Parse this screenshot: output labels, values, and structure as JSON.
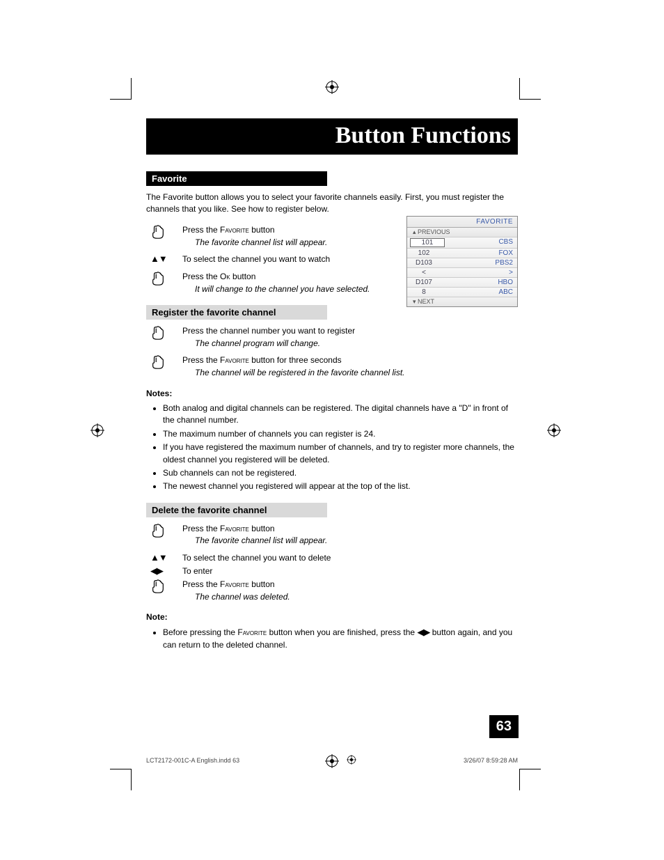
{
  "title": "Button Functions",
  "pageNumber": "63",
  "footer": {
    "left": "LCT2172-001C-A English.indd   63",
    "right": "3/26/07   8:59:28 AM"
  },
  "favorite": {
    "header": "Favorite",
    "intro": "The Favorite button allows you to select your favorite channels easily.  First, you must register the channels that you like.  See how to register below.",
    "step1": {
      "prefix": "Press the ",
      "btn": "Favorite",
      "suffix": " button",
      "sub": "The favorite channel list will appear."
    },
    "step2": {
      "text": "To select the channel you want to watch"
    },
    "step3": {
      "prefix": "Press the ",
      "btn": "Ok",
      "suffix": " button",
      "sub": "It will change to the channel you have selected."
    }
  },
  "register": {
    "header": "Register the favorite channel",
    "step1": {
      "text": "Press the channel number you want to register",
      "sub": "The channel program will change."
    },
    "step2": {
      "prefix": "Press the ",
      "btn": "Favorite",
      "suffix": " button for three seconds",
      "sub": "The channel will be registered in the favorite channel list."
    }
  },
  "notesHead": "Notes:",
  "notes": [
    "Both analog and digital channels can be registered.  The digital channels have a \"D\" in front of the channel number.",
    "The maximum number of channels you can register is 24.",
    "If you have registered the maximum number of channels, and try to register more channels, the oldest channel you registered will be deleted.",
    "Sub channels can not be registered.",
    "The newest channel you registered will appear at the top of the list."
  ],
  "delete": {
    "header": "Delete the favorite channel",
    "step1": {
      "prefix": "Press the ",
      "btn": "Favorite",
      "suffix": " button",
      "sub": "The favorite channel list will appear."
    },
    "step2": {
      "text": "To select the channel you want to delete"
    },
    "step2b": {
      "text": "To enter"
    },
    "step3": {
      "prefix": "Press the ",
      "btn": "Favorite",
      "suffix": " button",
      "sub": "The channel was deleted."
    }
  },
  "noteHead": "Note:",
  "note2_a": "Before pressing the ",
  "note2_btn": "Favorite",
  "note2_b": " button when you are finished, press the ",
  "note2_c": " button again, and you can return to the deleted channel.",
  "osd": {
    "title": "FAVORITE",
    "prev": "▴ PREVIOUS",
    "next": "▾ NEXT",
    "rows": [
      {
        "ch": "101",
        "name": "CBS",
        "sel": true
      },
      {
        "ch": "102",
        "name": "FOX"
      },
      {
        "ch": "D103",
        "name": "PBS2"
      },
      {
        "ch": "<",
        "name": ">"
      },
      {
        "ch": "D107",
        "name": "HBO"
      },
      {
        "ch": "8",
        "name": "ABC"
      }
    ]
  },
  "arrows": {
    "ud": "▲▼",
    "lr": "◀▶"
  }
}
